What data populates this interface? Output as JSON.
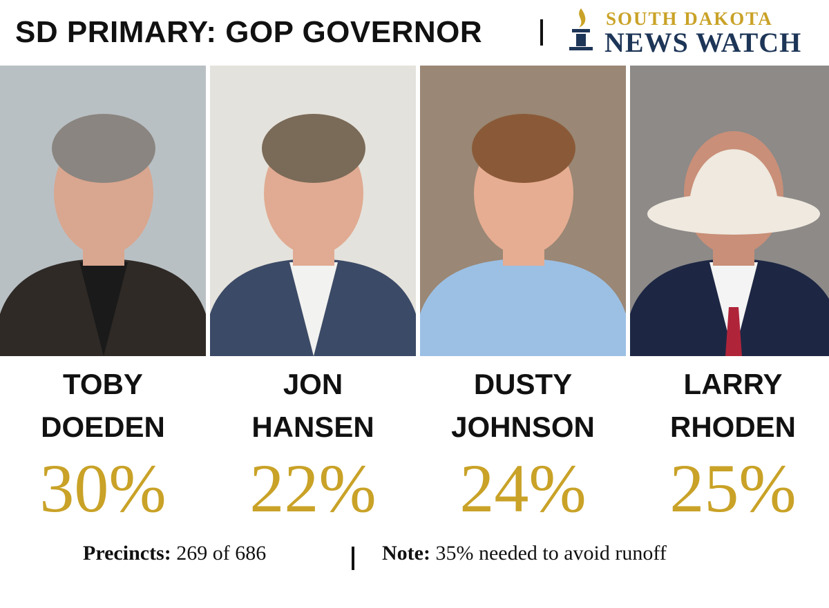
{
  "header": {
    "title": "SD PRIMARY: GOP GOVERNOR",
    "logo": {
      "line1": "SOUTH DAKOTA",
      "line2": "NEWS WATCH"
    }
  },
  "candidates": [
    {
      "first": "TOBY",
      "last": "DOEDEN",
      "percent": "30%"
    },
    {
      "first": "JON",
      "last": "HANSEN",
      "percent": "22%"
    },
    {
      "first": "DUSTY",
      "last": "JOHNSON",
      "percent": "24%"
    },
    {
      "first": "LARRY",
      "last": "RHODEN",
      "percent": "25%"
    }
  ],
  "footer": {
    "precincts_label": "Precincts:",
    "precincts": "269 of 686",
    "note_label": "Note:",
    "note": "35% needed to avoid runoff"
  }
}
